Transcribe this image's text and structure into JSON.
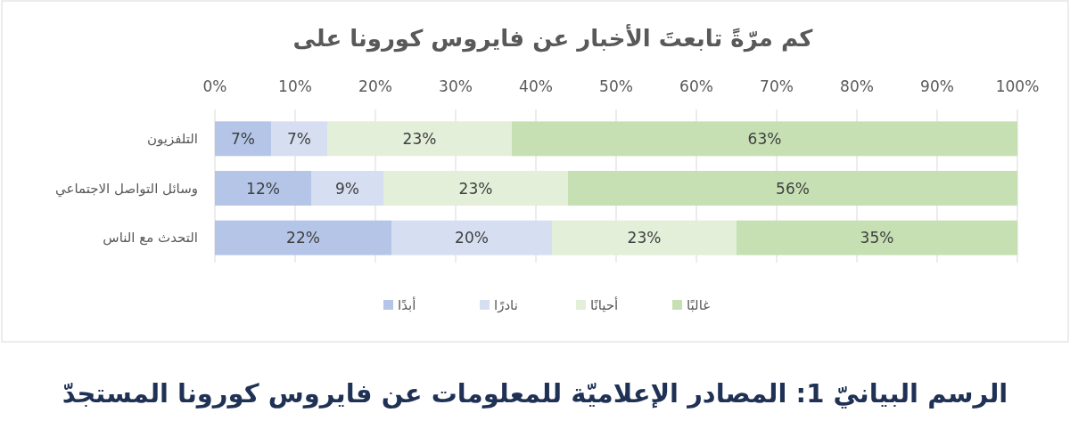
{
  "chart_data": {
    "type": "bar",
    "orientation": "horizontal",
    "stacked": true,
    "title": "كم مرّةً تابعتَ الأخبار عن فايروس كورونا على",
    "categories": [
      "التلفزيون",
      "وسائل التواصل الاجتماعي",
      "التحدث مع الناس"
    ],
    "series": [
      {
        "name": "أبدًا",
        "color": "#b4c5e7",
        "values": [
          7,
          12,
          22
        ],
        "value_labels": [
          "7%",
          "12%",
          "22%"
        ]
      },
      {
        "name": "نادرًا",
        "color": "#d6dff2",
        "values": [
          7,
          9,
          20
        ],
        "value_labels": [
          "7%",
          "9%",
          "20%"
        ]
      },
      {
        "name": "أحيانًا",
        "color": "#e3efd9",
        "values": [
          23,
          23,
          23
        ],
        "value_labels": [
          "23%",
          "23%",
          "23%"
        ]
      },
      {
        "name": "غالبًا",
        "color": "#c6e0b4",
        "values": [
          63,
          56,
          35
        ],
        "value_labels": [
          "63%",
          "56%",
          "35%"
        ]
      }
    ],
    "xlim": [
      0,
      100
    ],
    "xticks": [
      {
        "value": 0,
        "label": "0%"
      },
      {
        "value": 10,
        "label": "10%"
      },
      {
        "value": 20,
        "label": "20%"
      },
      {
        "value": 30,
        "label": "30%"
      },
      {
        "value": 40,
        "label": "40%"
      },
      {
        "value": 50,
        "label": "50%"
      },
      {
        "value": 60,
        "label": "60%"
      },
      {
        "value": 70,
        "label": "70%"
      },
      {
        "value": 80,
        "label": "80%"
      },
      {
        "value": 90,
        "label": "90%"
      },
      {
        "value": 100,
        "label": "100%"
      }
    ],
    "grid": "x",
    "legend": "bottom",
    "annotations": [
      "الرسم البيانيّ 1: المصادر الإعلاميّة للمعلومات عن فايروس كورونا المستجدّ"
    ]
  }
}
